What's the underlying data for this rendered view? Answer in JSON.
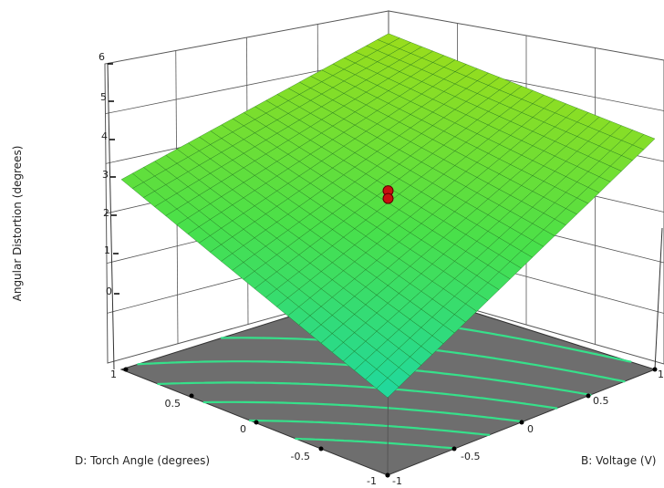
{
  "chart_data": {
    "type": "surface",
    "x_axis": {
      "label": "D: Torch Angle (degrees)",
      "range": [
        -1,
        1
      ],
      "ticks": [
        "-1",
        "-0.5",
        "0",
        "0.5",
        "1"
      ]
    },
    "y_axis": {
      "label": "B: Voltage (V)",
      "range": [
        -1,
        1
      ],
      "ticks": [
        "-1",
        "-0.5",
        "0",
        "0.5",
        "1"
      ]
    },
    "z_axis": {
      "label": "Angular Distortion (degrees)",
      "range": [
        0,
        6
      ],
      "ticks": [
        "0",
        "1",
        "2",
        "3",
        "4",
        "5",
        "6"
      ]
    },
    "surface_corners": [
      {
        "d": 1,
        "b": -1,
        "z": 2.9
      },
      {
        "d": 1,
        "b": 1,
        "z": 4.5
      },
      {
        "d": -1,
        "b": 1,
        "z": 3.95
      },
      {
        "d": -1,
        "b": -1,
        "z": 0.0
      }
    ],
    "design_points": [
      {
        "d": 0,
        "b": 0,
        "z": 2.75
      },
      {
        "d": 0,
        "b": 0,
        "z": 2.55
      }
    ],
    "grid": true,
    "colors": {
      "surface_low": "#1fd8a0",
      "surface_mid": "#49e04a",
      "surface_high": "#9ddd1a",
      "floor": "#6e6e6e",
      "contour": "#36e08a",
      "design_point": "#c81010",
      "grid_line": "#555555"
    }
  }
}
